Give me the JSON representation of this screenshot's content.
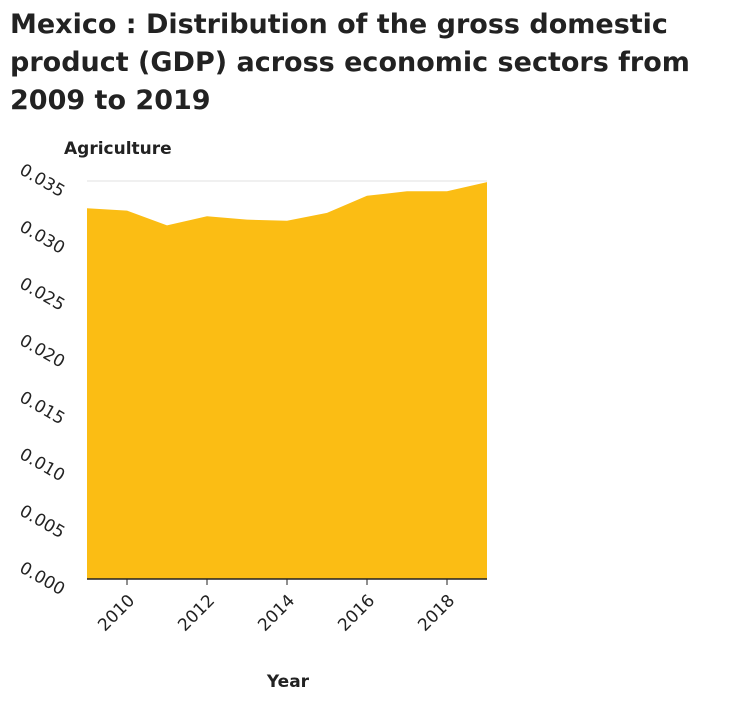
{
  "chart_data": {
    "type": "area",
    "title": "Mexico : Distribution of the gross domestic product (GDP) across economic sectors from 2009 to 2019",
    "xlabel": "Year",
    "ylabel": "Agriculture",
    "x": [
      2009,
      2010,
      2011,
      2012,
      2013,
      2014,
      2015,
      2016,
      2017,
      2018,
      2019
    ],
    "series": [
      {
        "name": "",
        "values": [
          0.0326,
          0.0324,
          0.0311,
          0.0319,
          0.0316,
          0.0315,
          0.0322,
          0.0337,
          0.0341,
          0.0341,
          0.0349
        ]
      }
    ],
    "x_ticks": [
      2010,
      2012,
      2014,
      2016,
      2018
    ],
    "y_ticks": [
      "0.000",
      "0.005",
      "0.010",
      "0.015",
      "0.020",
      "0.025",
      "0.030",
      "0.035"
    ],
    "xlim": [
      2009,
      2019
    ],
    "ylim": [
      0,
      0.035
    ],
    "grid": "horizontal",
    "legend": "none",
    "colors": {
      "fill": "#fbbd14",
      "grid": "#e0e0e0",
      "axis": "#222222",
      "text": "#222222"
    }
  }
}
